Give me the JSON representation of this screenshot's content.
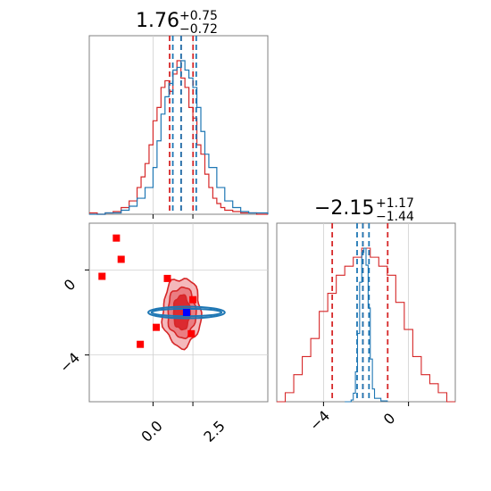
{
  "chart_data": {
    "type": "corner",
    "parameters": [
      {
        "title_value": "1.76",
        "title_plus": "+0.75",
        "title_minus": "−0.72",
        "median": 1.76,
        "err_plus": 0.75,
        "err_minus": 0.72,
        "range": [
          -4.0,
          7.2
        ],
        "ticks": [
          0.0,
          2.5
        ],
        "tick_labels": [
          "0.0",
          "2.5"
        ]
      },
      {
        "title_value": "−2.15",
        "title_plus": "+1.17",
        "title_minus": "−1.44",
        "median": -2.15,
        "err_plus": 1.17,
        "err_minus": 1.44,
        "range": [
          -6.2,
          2.2
        ],
        "ticks": [
          -4,
          0
        ],
        "tick_labels": [
          "−4",
          "0"
        ]
      }
    ],
    "series": [
      {
        "color": "#d62728",
        "hist1d_x": [
          -4.0,
          -3.5,
          -3.0,
          -2.5,
          -2.0,
          -1.5,
          -1.0,
          -0.75,
          -0.5,
          -0.25,
          0.0,
          0.25,
          0.5,
          0.75,
          1.0,
          1.25,
          1.5,
          1.75,
          2.0,
          2.25,
          2.5,
          2.75,
          3.0,
          3.25,
          3.5,
          3.75,
          4.0,
          4.25,
          4.5,
          5.0,
          5.5,
          6.0,
          6.5,
          7.2
        ],
        "hist1d_y": [
          1,
          0,
          1,
          2,
          5,
          10,
          20,
          28,
          38,
          52,
          70,
          80,
          95,
          100,
          92,
          105,
          115,
          102,
          95,
          80,
          72,
          52,
          45,
          30,
          20,
          12,
          8,
          5,
          3,
          2,
          1,
          1,
          0,
          0
        ],
        "quantile_lines": [
          1.04,
          1.76,
          2.51
        ],
        "hist1d_y2_x": [
          -6.2,
          -5.8,
          -5.4,
          -5.0,
          -4.6,
          -4.2,
          -3.8,
          -3.4,
          -3.0,
          -2.6,
          -2.2,
          -1.8,
          -1.4,
          -1.0,
          -0.6,
          -0.2,
          0.2,
          0.6,
          1.0,
          1.4,
          1.8,
          2.2
        ],
        "hist1d_y2": [
          0,
          1,
          3,
          5,
          7,
          10,
          12,
          14,
          15,
          16,
          17,
          16,
          15,
          14,
          11,
          8,
          5,
          3,
          2,
          1,
          0,
          0
        ],
        "quantile_lines_y2": [
          -3.59,
          -2.15,
          -0.98
        ],
        "scatter": [
          {
            "x": -3.2,
            "y": -0.3
          },
          {
            "x": -2.0,
            "y": 0.5
          },
          {
            "x": -2.3,
            "y": 1.5
          },
          {
            "x": -0.8,
            "y": -3.5
          },
          {
            "x": 0.2,
            "y": -2.7
          },
          {
            "x": 0.9,
            "y": -0.4
          },
          {
            "x": 2.5,
            "y": -1.4
          },
          {
            "x": 2.4,
            "y": -3.0
          }
        ],
        "contour_center": [
          1.8,
          -2.0
        ],
        "contour_radii": [
          [
            3.0,
            2.6
          ],
          [
            2.2,
            1.9
          ],
          [
            1.3,
            1.3
          ]
        ],
        "contour_fills": [
          "#f4b8bb",
          "#ea7d82",
          "#dc2a30"
        ]
      },
      {
        "color": "#1f77b4",
        "hist1d_x": [
          -4.0,
          -3.0,
          -2.0,
          -1.5,
          -1.0,
          -0.5,
          0.0,
          0.25,
          0.5,
          0.75,
          1.0,
          1.25,
          1.5,
          1.75,
          2.0,
          2.25,
          2.5,
          2.75,
          3.0,
          3.25,
          3.5,
          4.0,
          4.5,
          5.0,
          5.5,
          6.0,
          7.2
        ],
        "hist1d_y": [
          0,
          1,
          3,
          6,
          12,
          20,
          35,
          55,
          75,
          88,
          98,
          108,
          110,
          115,
          108,
          102,
          95,
          80,
          62,
          45,
          35,
          20,
          10,
          5,
          2,
          1,
          0
        ],
        "quantile_lines": [
          1.24,
          1.76,
          2.71
        ],
        "hist1d_y2_x": [
          -3.0,
          -2.7,
          -2.6,
          -2.5,
          -2.4,
          -2.3,
          -2.2,
          -2.1,
          -2.0,
          -1.9,
          -1.8,
          -1.7,
          -1.6,
          -1.3,
          -1.0
        ],
        "hist1d_y2": [
          0,
          2,
          10,
          35,
          80,
          140,
          175,
          180,
          160,
          110,
          50,
          15,
          4,
          1,
          0
        ],
        "quantile_lines_y2": [
          -2.42,
          -2.15,
          -1.86
        ],
        "point": {
          "x": 2.1,
          "y": -2.0
        },
        "ellipses": [
          [
            2.1,
            -2.0,
            4.8,
            0.55
          ],
          [
            2.1,
            -2.0,
            4.4,
            0.35
          ]
        ]
      }
    ]
  }
}
